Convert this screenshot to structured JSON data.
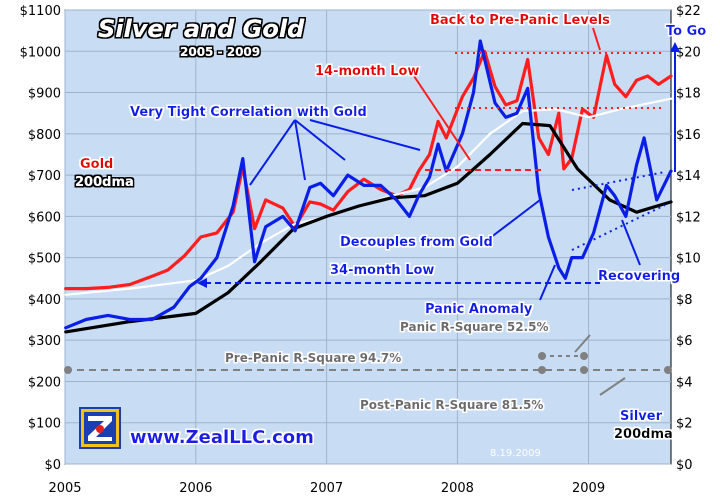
{
  "chart_data": {
    "type": "line",
    "title": "Silver and Gold",
    "subtitle": "2005 - 2009",
    "website": "www.ZealLLC.com",
    "date_stamp": "8.19.2009",
    "x_ticks": [
      "2005",
      "2006",
      "2007",
      "2008",
      "2009"
    ],
    "x_range": [
      "2005-01-01",
      "2009-08-19"
    ],
    "y_left": {
      "unit": "Gold ($/oz)",
      "range": [
        0,
        1100
      ],
      "ticks": [
        "$0",
        "$100",
        "$200",
        "$300",
        "$400",
        "$500",
        "$600",
        "$700",
        "$800",
        "$900",
        "$1000",
        "$1100"
      ]
    },
    "y_right": {
      "unit": "Silver ($/oz)",
      "range": [
        0,
        22
      ],
      "ticks": [
        "$0",
        "$2",
        "$4",
        "$6",
        "$8",
        "$10",
        "$12",
        "$14",
        "$16",
        "$18",
        "$20",
        "$22"
      ]
    },
    "grid": true,
    "colors": {
      "background": "#c8dcf4",
      "gold": "#ff1e1e",
      "gold_200dma": "#ffffff",
      "silver": "#0a1ee6",
      "silver_200dma": "#000000",
      "pre_panic_line": "#808080"
    },
    "series": [
      {
        "name": "Gold",
        "axis": "left",
        "color": "#ff1e1e",
        "x": [
          "2005-01-03",
          "2005-03-01",
          "2005-05-01",
          "2005-07-01",
          "2005-09-01",
          "2005-10-15",
          "2005-12-01",
          "2006-01-15",
          "2006-03-01",
          "2006-04-15",
          "2006-05-12",
          "2006-06-14",
          "2006-07-15",
          "2006-09-01",
          "2006-10-05",
          "2006-11-15",
          "2006-12-15",
          "2007-01-20",
          "2007-03-01",
          "2007-04-15",
          "2007-06-01",
          "2007-07-15",
          "2007-08-20",
          "2007-09-15",
          "2007-10-15",
          "2007-11-08",
          "2007-12-01",
          "2008-01-15",
          "2008-02-15",
          "2008-03-17",
          "2008-04-15",
          "2008-05-15",
          "2008-06-15",
          "2008-07-15",
          "2008-08-15",
          "2008-09-11",
          "2008-10-10",
          "2008-10-24",
          "2008-11-15",
          "2008-12-15",
          "2009-01-15",
          "2009-02-20",
          "2009-03-15",
          "2009-04-15",
          "2009-05-15",
          "2009-06-15",
          "2009-07-15",
          "2009-08-19"
        ],
        "values": [
          425,
          425,
          428,
          435,
          455,
          470,
          505,
          550,
          560,
          610,
          720,
          570,
          640,
          620,
          575,
          635,
          630,
          615,
          660,
          690,
          665,
          650,
          665,
          710,
          750,
          830,
          790,
          890,
          935,
          1000,
          915,
          870,
          880,
          980,
          790,
          750,
          850,
          715,
          740,
          860,
          840,
          990,
          920,
          890,
          930,
          940,
          920,
          940
        ]
      },
      {
        "name": "200dma",
        "axis": "left",
        "color": "#ffffff",
        "x": [
          "2005-01-03",
          "2005-07-01",
          "2006-01-01",
          "2006-04-01",
          "2006-07-01",
          "2006-10-01",
          "2007-01-01",
          "2007-04-01",
          "2007-07-01",
          "2007-10-01",
          "2008-01-01",
          "2008-04-01",
          "2008-07-01",
          "2008-10-01",
          "2009-01-01",
          "2009-04-01",
          "2009-08-19"
        ],
        "values": [
          410,
          425,
          445,
          480,
          535,
          580,
          600,
          625,
          650,
          670,
          720,
          800,
          855,
          860,
          840,
          860,
          885
        ]
      },
      {
        "name": "Silver",
        "axis": "right",
        "color": "#0a1ee6",
        "x": [
          "2005-01-03",
          "2005-03-01",
          "2005-05-01",
          "2005-07-01",
          "2005-09-01",
          "2005-11-01",
          "2005-12-15",
          "2006-01-15",
          "2006-03-01",
          "2006-04-15",
          "2006-05-12",
          "2006-06-14",
          "2006-07-15",
          "2006-09-01",
          "2006-10-05",
          "2006-11-15",
          "2006-12-15",
          "2007-01-20",
          "2007-03-01",
          "2007-04-15",
          "2007-06-01",
          "2007-07-15",
          "2007-08-20",
          "2007-09-15",
          "2007-10-15",
          "2007-11-08",
          "2007-12-01",
          "2008-01-15",
          "2008-02-15",
          "2008-03-05",
          "2008-04-15",
          "2008-05-15",
          "2008-06-15",
          "2008-07-15",
          "2008-08-15",
          "2008-09-11",
          "2008-10-10",
          "2008-10-28",
          "2008-11-15",
          "2008-12-15",
          "2009-01-15",
          "2009-02-20",
          "2009-03-15",
          "2009-04-15",
          "2009-05-15",
          "2009-06-05",
          "2009-07-10",
          "2009-08-19"
        ],
        "values": [
          6.6,
          7.0,
          7.2,
          7.0,
          7.0,
          7.6,
          8.6,
          9.0,
          10.0,
          12.5,
          14.8,
          9.8,
          11.5,
          12.0,
          11.3,
          13.4,
          13.6,
          13.0,
          14.0,
          13.5,
          13.5,
          12.8,
          12.0,
          13.0,
          13.9,
          15.5,
          14.2,
          16.0,
          18.0,
          20.5,
          17.5,
          16.8,
          17.0,
          18.2,
          13.2,
          11.0,
          9.5,
          9.0,
          10.0,
          10.0,
          11.2,
          13.5,
          13.0,
          12.0,
          14.5,
          15.8,
          12.8,
          14.2
        ]
      },
      {
        "name": "200dma",
        "axis": "right",
        "color": "#000000",
        "x": [
          "2005-01-03",
          "2005-07-01",
          "2006-01-01",
          "2006-04-01",
          "2006-07-01",
          "2006-10-01",
          "2007-01-01",
          "2007-04-01",
          "2007-07-01",
          "2007-10-01",
          "2008-01-01",
          "2008-04-01",
          "2008-07-01",
          "2008-09-15",
          "2008-12-01",
          "2009-03-01",
          "2009-05-15",
          "2009-08-19"
        ],
        "values": [
          6.4,
          6.9,
          7.3,
          8.3,
          9.8,
          11.4,
          12.0,
          12.5,
          12.9,
          13.0,
          13.6,
          15.0,
          16.5,
          16.4,
          14.3,
          12.8,
          12.2,
          12.7
        ]
      }
    ],
    "legend": [
      {
        "label": "Gold",
        "color": "#ff1e1e"
      },
      {
        "label": "200dma",
        "color": "#ffffff"
      },
      {
        "label": "Silver",
        "color": "#0a1ee6"
      },
      {
        "label": "200dma",
        "color": "#000000"
      }
    ],
    "annotations": [
      {
        "text": "Back to Pre-Panic Levels",
        "color": "#e60000"
      },
      {
        "text": "To Go",
        "color": "#0a1ee6"
      },
      {
        "text": "14-month Low",
        "color": "#e60000"
      },
      {
        "text": "Very Tight Correlation with Gold",
        "color": "#0a1ee6"
      },
      {
        "text": "Decouples from Gold",
        "color": "#0a1ee6"
      },
      {
        "text": "34-month Low",
        "color": "#0a1ee6"
      },
      {
        "text": "Recovering",
        "color": "#0a1ee6"
      },
      {
        "text": "Panic Anomaly",
        "color": "#0a1ee6"
      },
      {
        "text": "Panic R-Square 52.5%",
        "color": "#6b6b6b"
      },
      {
        "text": "Pre-Panic R-Square 94.7%",
        "color": "#6b6b6b"
      },
      {
        "text": "Post-Panic R-Square 81.5%",
        "color": "#6b6b6b"
      }
    ]
  }
}
